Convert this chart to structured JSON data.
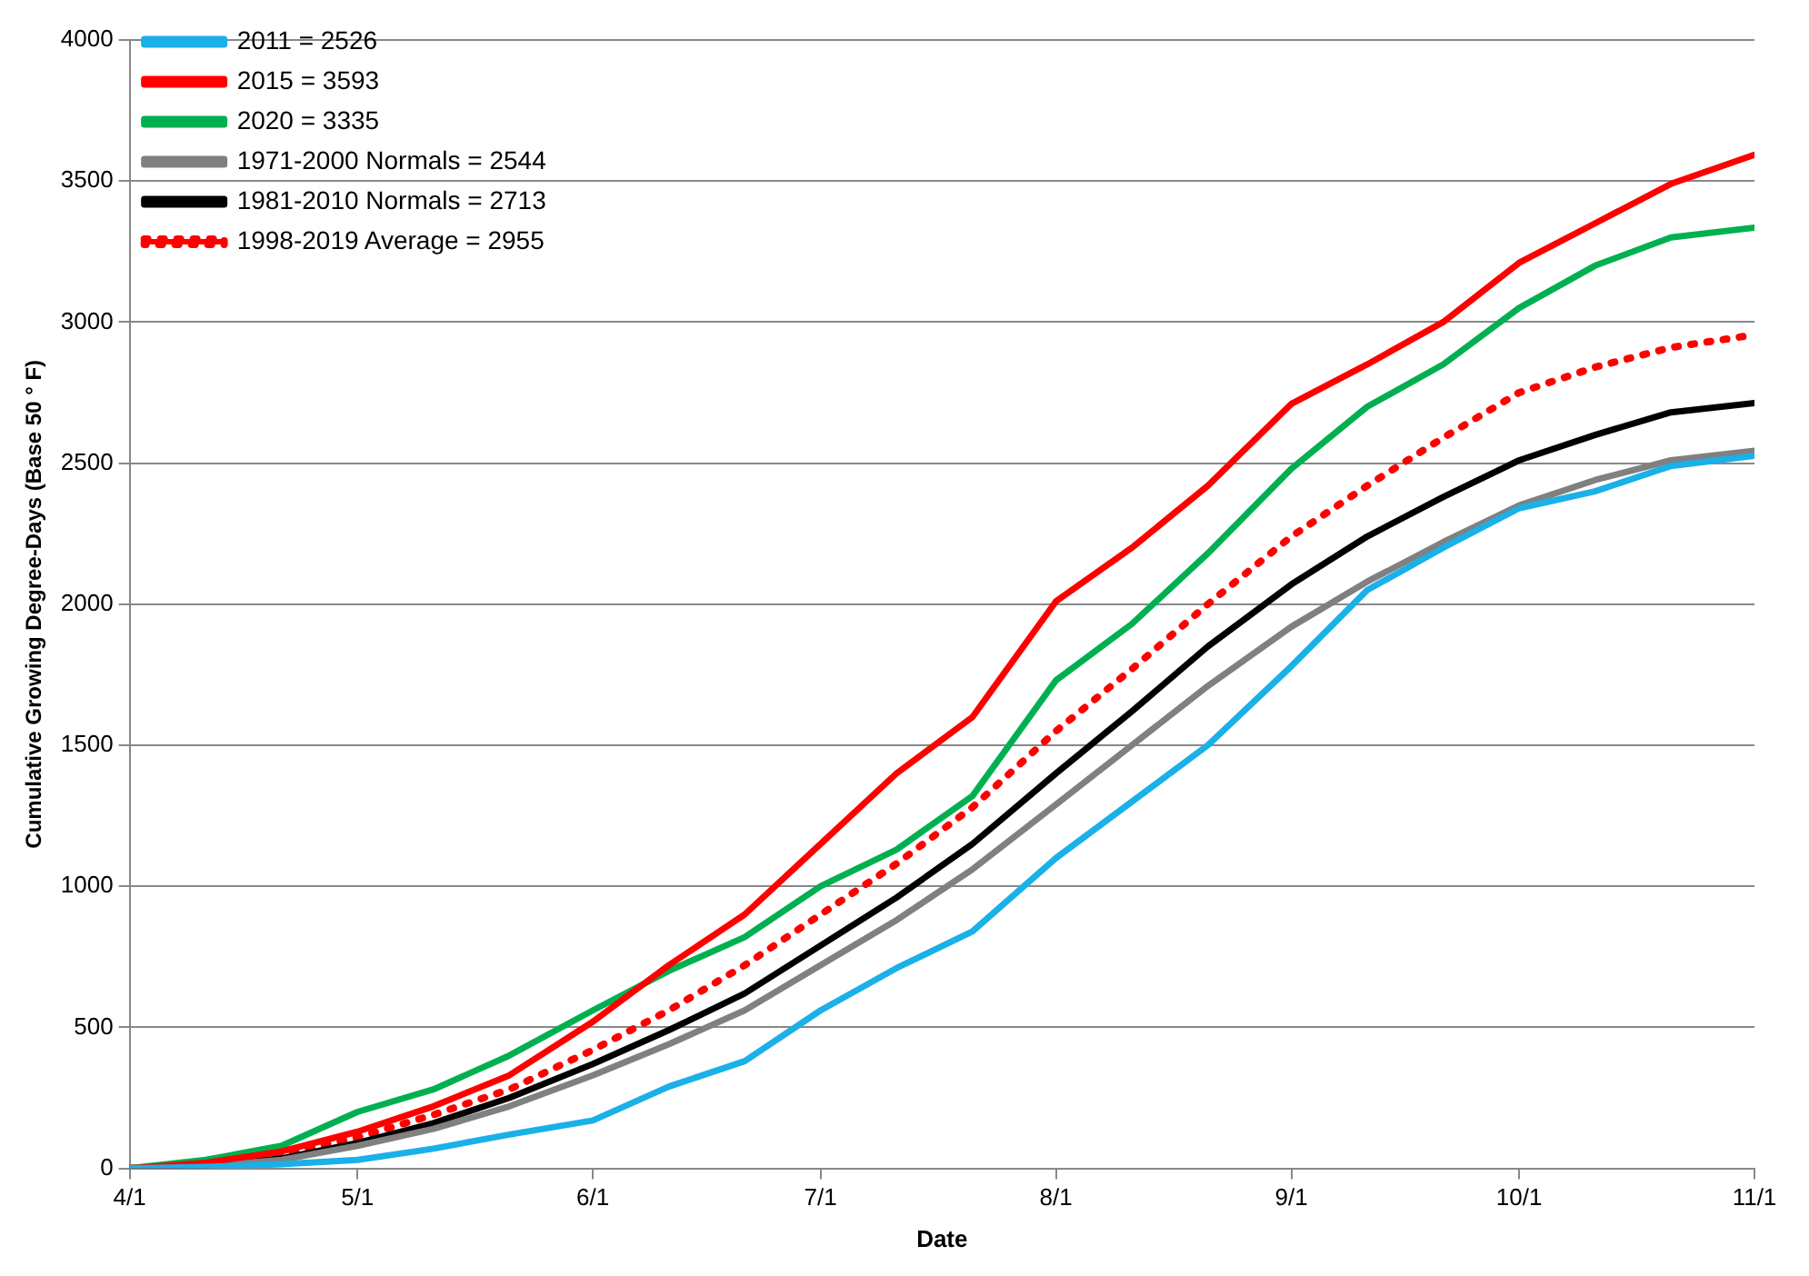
{
  "chart_data": {
    "type": "line",
    "xlabel": "Date",
    "ylabel": "Cumulative Growing Degree-Days (Base 50 ° F)",
    "x": [
      "--04-01",
      "--04-11",
      "--04-21",
      "--05-01",
      "--05-11",
      "--05-21",
      "--06-01",
      "--06-11",
      "--06-21",
      "--07-01",
      "--07-11",
      "--07-21",
      "--08-01",
      "--08-11",
      "--08-21",
      "--09-01",
      "--09-11",
      "--09-21",
      "--10-01",
      "--10-11",
      "--10-21",
      "--11-01"
    ],
    "xlim": [
      "--04-01",
      "--11-01"
    ],
    "xticks": [
      {
        "value": "--04-01",
        "label": "4/1"
      },
      {
        "value": "--05-01",
        "label": "5/1"
      },
      {
        "value": "--06-01",
        "label": "6/1"
      },
      {
        "value": "--07-01",
        "label": "7/1"
      },
      {
        "value": "--08-01",
        "label": "8/1"
      },
      {
        "value": "--09-01",
        "label": "9/1"
      },
      {
        "value": "--10-01",
        "label": "10/1"
      },
      {
        "value": "--11-01",
        "label": "11/1"
      }
    ],
    "ylim": [
      0,
      4000
    ],
    "yticks": [
      0,
      500,
      1000,
      1500,
      2000,
      2500,
      3000,
      3500,
      4000
    ],
    "grid": "y",
    "legend": "top left",
    "marker": "none",
    "series": [
      {
        "name": "2011 = 2526",
        "color": "#1ab0e8",
        "values": [
          0,
          5,
          15,
          30,
          70,
          120,
          170,
          290,
          380,
          560,
          710,
          840,
          1100,
          1300,
          1500,
          1780,
          2050,
          2200,
          2340,
          2400,
          2490,
          2526
        ]
      },
      {
        "name": "2015 = 3593",
        "color": "#ff0000",
        "values": [
          0,
          20,
          60,
          130,
          220,
          330,
          520,
          720,
          900,
          1150,
          1400,
          1600,
          2010,
          2200,
          2420,
          2710,
          2850,
          3000,
          3210,
          3350,
          3490,
          3593
        ]
      },
      {
        "name": "2020 = 3335",
        "color": "#00b050",
        "values": [
          0,
          30,
          80,
          200,
          280,
          400,
          560,
          700,
          820,
          1000,
          1130,
          1320,
          1730,
          1930,
          2180,
          2480,
          2700,
          2850,
          3050,
          3200,
          3300,
          3335
        ]
      },
      {
        "name": "1971-2000 Normals = 2544",
        "color": "#808080",
        "values": [
          0,
          8,
          30,
          80,
          140,
          220,
          330,
          440,
          560,
          720,
          880,
          1060,
          1290,
          1500,
          1710,
          1920,
          2080,
          2220,
          2350,
          2440,
          2510,
          2544
        ]
      },
      {
        "name": "1981-2010 Normals = 2713",
        "color": "#000000",
        "values": [
          0,
          10,
          35,
          90,
          160,
          250,
          370,
          490,
          620,
          790,
          960,
          1150,
          1400,
          1620,
          1850,
          2070,
          2240,
          2380,
          2510,
          2600,
          2680,
          2713
        ]
      },
      {
        "name": "1998-2019 Average = 2955",
        "color": "#ff0000",
        "line_style": "dotted",
        "values": [
          0,
          15,
          50,
          110,
          190,
          280,
          420,
          560,
          720,
          900,
          1080,
          1280,
          1550,
          1770,
          2000,
          2240,
          2420,
          2590,
          2750,
          2840,
          2910,
          2955
        ]
      }
    ]
  }
}
